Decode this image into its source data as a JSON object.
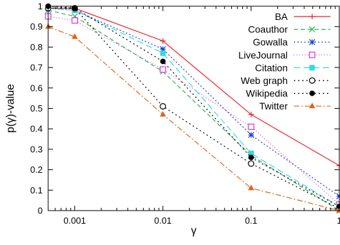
{
  "chart_data": {
    "type": "line",
    "xlabel": "γ",
    "ylabel": "p(γ)-value",
    "xscale": "log",
    "xlim": [
      0.0005,
      1
    ],
    "ylim": [
      0,
      1
    ],
    "xticks": [
      {
        "value": 0.001,
        "label": "0.001"
      },
      {
        "value": 0.01,
        "label": "0.01"
      },
      {
        "value": 0.1,
        "label": "0.1"
      },
      {
        "value": 1,
        "label": "1"
      }
    ],
    "yticks": [
      {
        "value": 0,
        "label": "0"
      },
      {
        "value": 0.1,
        "label": "0.1"
      },
      {
        "value": 0.2,
        "label": "0.2"
      },
      {
        "value": 0.3,
        "label": "0.3"
      },
      {
        "value": 0.4,
        "label": "0.4"
      },
      {
        "value": 0.5,
        "label": "0.5"
      },
      {
        "value": 0.6,
        "label": "0.6"
      },
      {
        "value": 0.7,
        "label": "0.7"
      },
      {
        "value": 0.8,
        "label": "0.8"
      },
      {
        "value": 0.9,
        "label": "0.9"
      },
      {
        "value": 1,
        "label": "1"
      }
    ],
    "x": [
      0.0005,
      0.001,
      0.01,
      0.1,
      1
    ],
    "legend_position": "top-right",
    "grid": false,
    "series": [
      {
        "name": "BA",
        "color": "#e8262a",
        "dash": "",
        "marker": "plus",
        "values": [
          0.99,
          0.99,
          0.83,
          0.47,
          0.22
        ]
      },
      {
        "name": "Coauthor",
        "color": "#2db34a",
        "dash": "6,4",
        "marker": "cross",
        "values": [
          0.98,
          0.95,
          0.68,
          0.27,
          0.0
        ]
      },
      {
        "name": "Gowalla",
        "color": "#1f3fd1",
        "dash": "2,3",
        "marker": "star",
        "values": [
          0.99,
          0.98,
          0.79,
          0.37,
          0.07
        ]
      },
      {
        "name": "LiveJournal",
        "color": "#d534d8",
        "dash": "1,3",
        "marker": "square-open",
        "values": [
          0.95,
          0.93,
          0.69,
          0.41,
          0.03
        ]
      },
      {
        "name": "Citation",
        "color": "#36d7e6",
        "dash": "9,5",
        "marker": "square-filled",
        "values": [
          0.99,
          0.98,
          0.77,
          0.28,
          0.02
        ]
      },
      {
        "name": "Web graph",
        "color": "#000000",
        "dash": "2,4",
        "marker": "circle-open",
        "values": [
          0.99,
          0.99,
          0.51,
          0.23,
          0.01
        ]
      },
      {
        "name": "Wikipedia",
        "color": "#000000",
        "dash": "2,4",
        "marker": "circle-filled",
        "values": [
          1.0,
          0.99,
          0.73,
          0.26,
          0.02
        ]
      },
      {
        "name": "Twitter",
        "color": "#e2621b",
        "dash": "8,3,2,3",
        "marker": "triangle-filled",
        "values": [
          0.9,
          0.85,
          0.47,
          0.11,
          0.0
        ]
      }
    ]
  }
}
